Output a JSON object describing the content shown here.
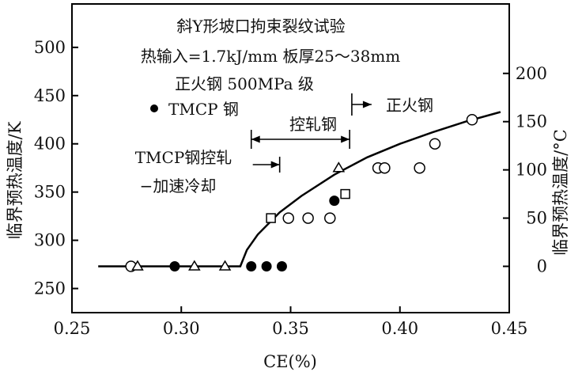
{
  "chart_data": {
    "type": "scatter",
    "title_lines": [
      "斜Y形坡口拘束裂纹试验",
      "热输入=1.7kJ/mm 板厚25～38mm",
      "正火钢 500MPa 级"
    ],
    "xlabel": "CE(%)",
    "ylabel_left": "临界预热温度/K",
    "ylabel_right": "临界预热温度/°C",
    "xlim": [
      0.25,
      0.45
    ],
    "ylim": [
      225,
      545
    ],
    "x_ticks": [
      "0.25",
      "0.30",
      "0.35",
      "0.40",
      "0.45"
    ],
    "x_tick_values": [
      0.25,
      0.3,
      0.35,
      0.4,
      0.45
    ],
    "y_left_ticks": [
      "250",
      "300",
      "350",
      "400",
      "450",
      "500"
    ],
    "y_left_tick_values": [
      250,
      300,
      350,
      400,
      450,
      500
    ],
    "y_right_ticks": [
      "0",
      "50",
      "100",
      "150",
      "200"
    ],
    "y_right_tick_values": [
      0,
      50,
      100,
      150,
      200
    ],
    "legend_entry": "TMCP 钢",
    "series": [
      {
        "marker": "circle-filled",
        "points": [
          [
            0.297,
            273
          ],
          [
            0.332,
            273
          ],
          [
            0.339,
            273
          ],
          [
            0.346,
            273
          ],
          [
            0.37,
            341
          ]
        ]
      },
      {
        "marker": "circle-open",
        "points": [
          [
            0.277,
            273
          ],
          [
            0.349,
            323
          ],
          [
            0.358,
            323
          ],
          [
            0.368,
            323
          ],
          [
            0.39,
            375
          ],
          [
            0.393,
            375
          ],
          [
            0.409,
            375
          ],
          [
            0.416,
            400
          ],
          [
            0.433,
            425
          ]
        ]
      },
      {
        "marker": "triangle-open",
        "points": [
          [
            0.28,
            273
          ],
          [
            0.306,
            273
          ],
          [
            0.32,
            273
          ],
          [
            0.372,
            375
          ]
        ]
      },
      {
        "marker": "square-open",
        "points": [
          [
            0.341,
            323
          ],
          [
            0.375,
            348
          ]
        ]
      }
    ],
    "curve": [
      [
        0.262,
        273
      ],
      [
        0.327,
        273
      ],
      [
        0.33,
        290
      ],
      [
        0.335,
        306
      ],
      [
        0.345,
        329
      ],
      [
        0.355,
        346
      ],
      [
        0.37,
        368
      ],
      [
        0.385,
        386
      ],
      [
        0.4,
        400
      ],
      [
        0.415,
        412
      ],
      [
        0.43,
        423
      ],
      [
        0.446,
        433
      ]
    ],
    "annotations": {
      "kongzha_label": "控轧钢",
      "kongzha_range": [
        0.332,
        0.377
      ],
      "zhenghuo_label": "正火钢",
      "zhenghuo_start": 0.378,
      "tmcp_label_lines": [
        "TMCP钢控轧",
        "−加速冷却"
      ],
      "tmcp_arrow_end": 0.345
    },
    "grid": false
  }
}
